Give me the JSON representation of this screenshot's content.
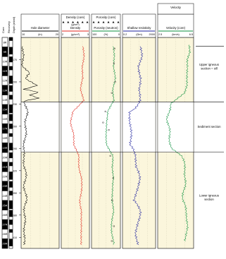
{
  "colors": {
    "panel_bg": "#fbf6dc",
    "caliper": "#000000",
    "density": "#e0261c",
    "porosity": "#0b8f3c",
    "resistivity": "#1b1f9c",
    "velocity": "#0b8f3c",
    "core_points": "#000000",
    "unit_line": "#000000"
  },
  "header": {
    "core": "Core",
    "recovery": "Recovery",
    "depth": "Depth (mbsf)"
  },
  "tracks": [
    {
      "id": "hole_diameter",
      "label": "Hole diameter",
      "units": "(in)",
      "scale_min": "10",
      "scale_max": "20",
      "color": "caliper"
    },
    {
      "id": "density",
      "label": "Density",
      "units": "(g/cm³)",
      "scale_min": "2",
      "scale_max": "3",
      "core_label": "Density (core)",
      "core_units": "(g/cm³)",
      "color": "density"
    },
    {
      "id": "porosity",
      "label": "Porosity (neutron)",
      "units": "(%)",
      "scale_min": "100",
      "scale_max": "0",
      "core_label": "Porosity (core)",
      "color": "porosity"
    },
    {
      "id": "resistivity",
      "label": "Shallow resistivity",
      "units": "(Ωm)",
      "scale_min": "0.2",
      "scale_max": "2000",
      "color": "resistivity"
    },
    {
      "id": "velocity",
      "label": "Velocity (core)",
      "units": "(km/s)",
      "scale_min": "2.5",
      "scale_max": "6.5",
      "top_label": "Velocity",
      "color": "velocity"
    }
  ],
  "depth_axis": {
    "ticks": [
      "170",
      "200",
      "230",
      "260",
      "290",
      "320",
      "350",
      "380",
      "410"
    ]
  },
  "core_labels": [
    "8R",
    "9R",
    "10R",
    "11R",
    "12R",
    "13R",
    "14R",
    "15R",
    "16R",
    "17R",
    "18R",
    "19R",
    "20R",
    "21R",
    "22R",
    "23R",
    "24R",
    "25R",
    "26R",
    "27R",
    "28R",
    "29R"
  ],
  "units": [
    {
      "label_lines": [
        "Upper igneous",
        "section = sill"
      ]
    },
    {
      "label_lines": [
        "Sediment section"
      ]
    },
    {
      "label_lines": [
        "Lower igneous",
        "section"
      ]
    }
  ],
  "chart_data": {
    "type": "line",
    "title": "",
    "y_axis": {
      "label": "Depth (mbsf)",
      "min": 140,
      "max": 425,
      "inverted": true
    },
    "unit_boundaries_mbsf": [
      227,
      295
    ],
    "intervals_mbsf": [
      {
        "name": "Upper igneous section = sill",
        "top": 140,
        "bottom": 227
      },
      {
        "name": "Sediment section",
        "top": 227,
        "bottom": 295
      },
      {
        "name": "Lower igneous section",
        "top": 295,
        "bottom": 425
      }
    ],
    "series": [
      {
        "name": "Hole diameter",
        "units": "in",
        "xlim": [
          10,
          20
        ],
        "depth": [
          152,
          165,
          178,
          188,
          196,
          205,
          210,
          214,
          218,
          222,
          226,
          240,
          260,
          280,
          300,
          320,
          340,
          360,
          380,
          400,
          420
        ],
        "values": [
          10.2,
          10.8,
          10.4,
          12.5,
          11.0,
          14.0,
          11.0,
          14.5,
          12.0,
          14.8,
          11.0,
          11.5,
          11.2,
          11.0,
          10.5,
          11.2,
          10.9,
          11.3,
          10.8,
          11.0,
          10.6
        ]
      },
      {
        "name": "Density",
        "units": "g/cm3",
        "xlim": [
          2,
          3
        ],
        "depth": [
          152,
          165,
          180,
          195,
          210,
          225,
          240,
          255,
          270,
          285,
          300,
          315,
          330,
          345,
          360,
          375,
          390,
          405,
          420
        ],
        "values": [
          2.75,
          2.8,
          2.72,
          2.78,
          2.7,
          2.78,
          2.4,
          2.35,
          2.45,
          2.42,
          2.62,
          2.65,
          2.72,
          2.7,
          2.66,
          2.74,
          2.7,
          2.68,
          2.72
        ]
      },
      {
        "name": "Porosity (neutron)",
        "units": "%",
        "xlim": [
          100,
          0
        ],
        "depth": [
          152,
          165,
          180,
          195,
          210,
          225,
          240,
          255,
          270,
          285,
          300,
          315,
          330,
          345,
          360,
          375,
          390,
          405,
          420
        ],
        "values": [
          22,
          18,
          24,
          20,
          26,
          20,
          45,
          50,
          48,
          46,
          28,
          30,
          22,
          26,
          32,
          24,
          28,
          30,
          24
        ]
      },
      {
        "name": "Shallow resistivity",
        "units": "ohm m",
        "xlim": [
          0.2,
          2000
        ],
        "log": true,
        "depth": [
          152,
          165,
          180,
          195,
          210,
          225,
          240,
          255,
          270,
          285,
          300,
          315,
          330,
          345,
          360,
          375,
          390,
          405,
          420
        ],
        "values": [
          30,
          40,
          20,
          35,
          15,
          25,
          2,
          1.5,
          1.8,
          1.6,
          10,
          8,
          20,
          15,
          6,
          25,
          12,
          9,
          18
        ]
      },
      {
        "name": "Velocity (core)",
        "units": "km/s",
        "xlim": [
          2.5,
          6.5
        ],
        "depth": [
          150,
          160,
          170,
          180,
          195,
          205,
          215,
          230,
          250,
          270,
          290,
          300,
          320,
          340,
          360,
          380,
          400,
          415
        ],
        "values": [
          5.9,
          6.0,
          5.8,
          5.9,
          5.7,
          5.8,
          5.6,
          3.9,
          3.6,
          3.8,
          4.0,
          5.2,
          5.6,
          5.5,
          5.3,
          5.8,
          5.7,
          5.6
        ]
      }
    ],
    "core_points": {
      "name": "Porosity (core)",
      "units": "%",
      "depth": [
        155,
        175,
        200,
        215,
        240,
        255,
        265,
        300,
        330,
        360,
        395,
        415
      ],
      "values": [
        20,
        22,
        18,
        30,
        52,
        60,
        40,
        35,
        25,
        28,
        22,
        30
      ]
    }
  }
}
